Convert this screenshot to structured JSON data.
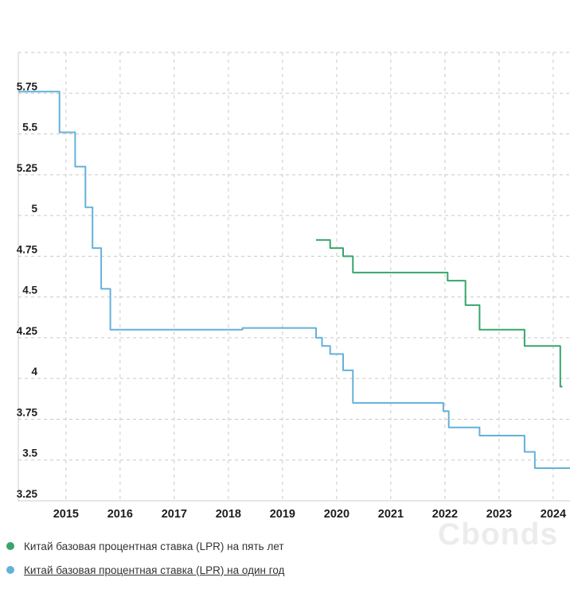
{
  "watermark": {
    "text": "Cbonds"
  },
  "chart_data": {
    "type": "line",
    "line_style": "step-after",
    "title": "",
    "xlabel": "",
    "ylabel": "",
    "grid": "dashed",
    "legend_position": "bottom-left",
    "xlim": [
      2014.12,
      2024.31
    ],
    "ylim": [
      3.25,
      6.0
    ],
    "y_grid_step": 0.25,
    "x_tick_values": [
      2015,
      2016,
      2017,
      2018,
      2019,
      2020,
      2021,
      2022,
      2023,
      2024
    ],
    "x_tick_labels": [
      "2015",
      "2016",
      "2017",
      "2018",
      "2019",
      "2020",
      "2021",
      "2022",
      "2023",
      "2024"
    ],
    "y_tick_values": [
      5.75,
      5.5,
      5.25,
      5.0,
      4.75,
      4.5,
      4.25,
      4.0,
      3.75,
      3.5,
      3.25
    ],
    "y_tick_labels": [
      "5.75",
      "5.5",
      "5.25",
      "5",
      "4.75",
      "4.5",
      "4.25",
      "4",
      "3.75",
      "3.5",
      "3.25"
    ],
    "colors": {
      "background": "#ffffff",
      "grid": "#c9c9c9",
      "axis": "#cccccc",
      "tick_label": "#1c1c1c",
      "legend_text": "#333333",
      "watermark": "#ececec"
    },
    "series": [
      {
        "name": "Китай базовая процентная ставка (LPR) на пять лет",
        "color": "#38a56a",
        "underlined": false,
        "points": [
          [
            2019.62,
            4.85
          ],
          [
            2019.88,
            4.8
          ],
          [
            2020.12,
            4.75
          ],
          [
            2020.3,
            4.65
          ],
          [
            2022.05,
            4.6
          ],
          [
            2022.38,
            4.45
          ],
          [
            2022.64,
            4.3
          ],
          [
            2023.47,
            4.2
          ],
          [
            2024.13,
            3.95
          ],
          [
            2024.17,
            3.95
          ]
        ]
      },
      {
        "name": "Китай базовая процентная ставка (LPR) на один год",
        "color": "#64b1d9",
        "underlined": true,
        "points": [
          [
            2014.12,
            5.76
          ],
          [
            2014.88,
            5.51
          ],
          [
            2015.17,
            5.3
          ],
          [
            2015.36,
            5.05
          ],
          [
            2015.49,
            4.8
          ],
          [
            2015.65,
            4.55
          ],
          [
            2015.82,
            4.3
          ],
          [
            2018.26,
            4.31
          ],
          [
            2019.62,
            4.25
          ],
          [
            2019.73,
            4.2
          ],
          [
            2019.88,
            4.15
          ],
          [
            2020.12,
            4.05
          ],
          [
            2020.3,
            3.85
          ],
          [
            2021.97,
            3.8
          ],
          [
            2022.07,
            3.7
          ],
          [
            2022.64,
            3.65
          ],
          [
            2023.47,
            3.55
          ],
          [
            2023.66,
            3.45
          ],
          [
            2024.31,
            3.45
          ]
        ]
      }
    ]
  }
}
